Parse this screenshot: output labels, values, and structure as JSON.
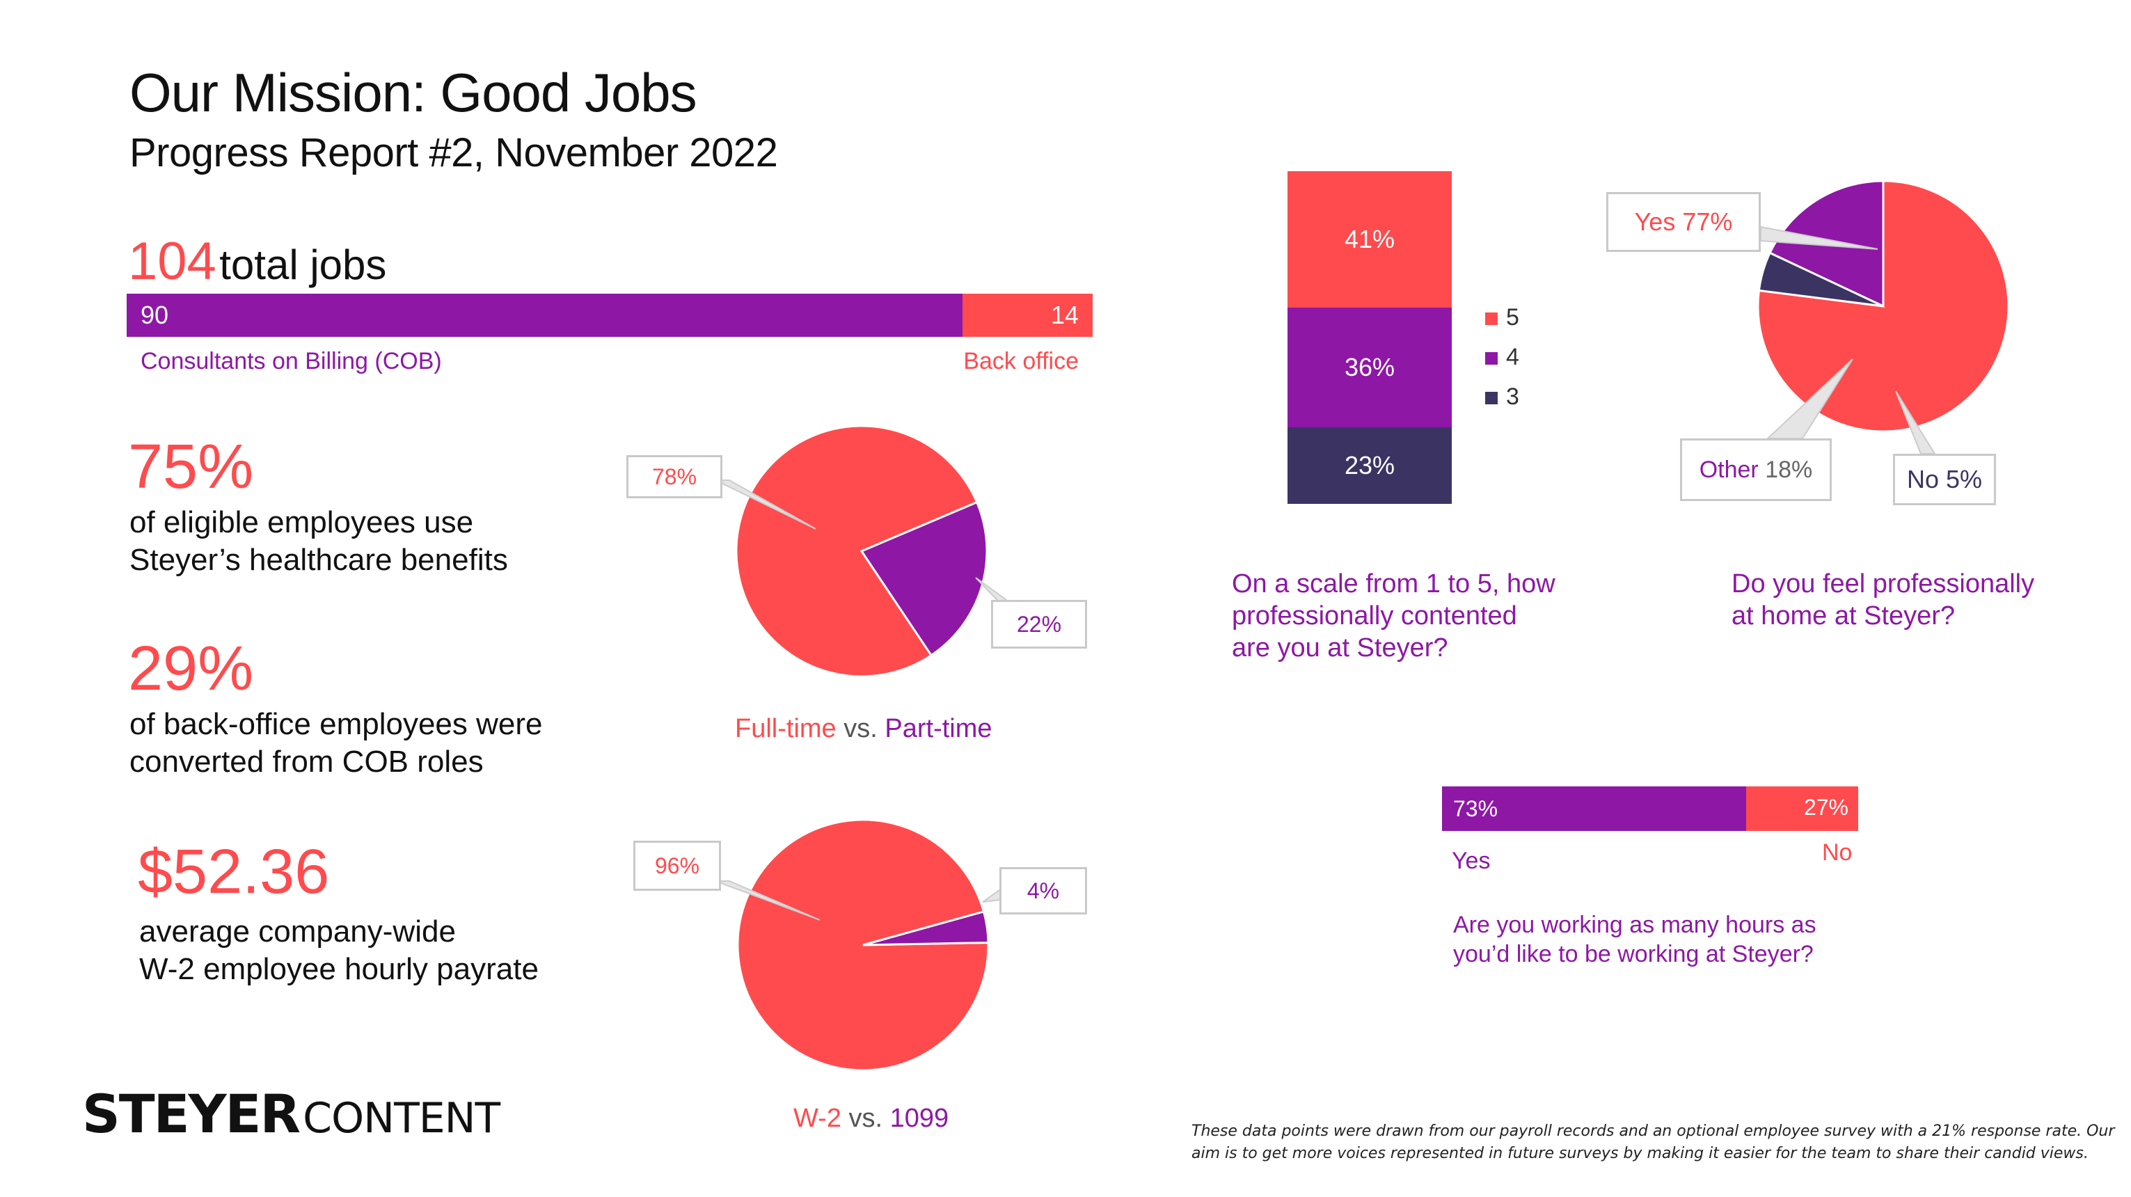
{
  "header": {
    "title": "Our Mission: Good Jobs",
    "subtitle": "Progress Report #2, November 2022"
  },
  "colors": {
    "red": "#ff4b4d",
    "purple": "#8e17a6",
    "navy": "#3b3463",
    "text": "#111111"
  },
  "jobs": {
    "total": "104",
    "total_label": "total jobs",
    "cob_value": "90",
    "back_value": "14",
    "cob_label": "Consultants on Billing (COB)",
    "back_label": "Back office"
  },
  "stats": [
    {
      "value": "75%",
      "line1": "of eligible employees use",
      "line2": "Steyer’s healthcare benefits"
    },
    {
      "value": "29%",
      "line1": "of back-office employees were",
      "line2": "converted from COB roles"
    },
    {
      "value": "$52.36",
      "line1": "average company-wide",
      "line2": "W-2 employee hourly payrate"
    }
  ],
  "fulltime_pie": {
    "left_label": "Full-time",
    "vs": " vs. ",
    "right_label": "Part-time",
    "slice1_label": "78%",
    "slice2_label": "22%"
  },
  "w2_pie": {
    "left_label": "W-2",
    "vs": " vs. ",
    "right_label": "1099",
    "slice1_label": "96%",
    "slice2_label": "4%"
  },
  "scale_chart": {
    "seg_5": "41%",
    "seg_4": "36%",
    "seg_3": "23%",
    "legend": [
      "5",
      "4",
      "3"
    ],
    "question_l1": "On a scale from 1 to 5, how",
    "question_l2": "professionally contented",
    "question_l3": "are you at Steyer?"
  },
  "home_pie": {
    "yes_word": "Yes",
    "yes_pct": "77%",
    "other_word": "Other",
    "other_pct": "18%",
    "no_word": "No",
    "no_pct": "5%",
    "question_l1": "Do you feel professionally",
    "question_l2": "at home at Steyer?"
  },
  "hours_bar": {
    "yes_value": "73%",
    "no_value": "27%",
    "yes_label": "Yes",
    "no_label": "No",
    "question_l1": "Are you working as many hours as",
    "question_l2": "you’d like to be working at Steyer?"
  },
  "logo": {
    "word1": "STEYER",
    "word2": "CONTENT"
  },
  "footnote": "These data points were drawn from our payroll records and an optional employee survey with a 21% response rate. Our aim is to get more voices represented in future surveys by making it easier for the team to share their candid views.",
  "chart_data": [
    {
      "type": "bar",
      "title": "104 total jobs",
      "categories": [
        "Consultants on Billing (COB)",
        "Back office"
      ],
      "values": [
        90,
        14
      ]
    },
    {
      "type": "pie",
      "title": "Full-time vs. Part-time",
      "categories": [
        "Full-time",
        "Part-time"
      ],
      "values": [
        78,
        22
      ]
    },
    {
      "type": "pie",
      "title": "W-2 vs. 1099",
      "categories": [
        "W-2",
        "1099"
      ],
      "values": [
        96,
        4
      ]
    },
    {
      "type": "bar",
      "title": "On a scale from 1 to 5, how professionally contented are you at Steyer?",
      "categories": [
        "5",
        "4",
        "3"
      ],
      "values": [
        41,
        36,
        23
      ],
      "legend": "right"
    },
    {
      "type": "pie",
      "title": "Do you feel professionally at home at Steyer?",
      "categories": [
        "Yes",
        "Other",
        "No"
      ],
      "values": [
        77,
        18,
        5
      ]
    },
    {
      "type": "bar",
      "title": "Are you working as many hours as you’d like to be working at Steyer?",
      "categories": [
        "Yes",
        "No"
      ],
      "values": [
        73,
        27
      ]
    }
  ]
}
